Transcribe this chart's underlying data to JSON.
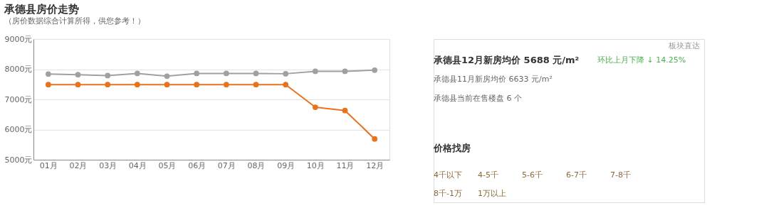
{
  "chart_data": [
    {
      "type": "line",
      "title": "承德县房价走势",
      "subtitle": "（房价数据综合计算所得，供您参考！）",
      "categories": [
        "01月",
        "02月",
        "03月",
        "04月",
        "05月",
        "06月",
        "07月",
        "08月",
        "09月",
        "10月",
        "11月",
        "12月"
      ],
      "series": [
        {
          "color": "#a0a0a0",
          "values": [
            7840,
            7820,
            7790,
            7860,
            7770,
            7860,
            7860,
            7860,
            7850,
            7930,
            7930,
            7970
          ]
        },
        {
          "color": "#e8731f",
          "values": [
            7490,
            7490,
            7490,
            7490,
            7490,
            7490,
            7490,
            7490,
            7490,
            6740,
            6630,
            5690
          ]
        }
      ],
      "ylim": [
        5000,
        9000
      ],
      "yticks": [
        {
          "value": 5000,
          "label": "5000元"
        },
        {
          "value": 6000,
          "label": "6000元"
        },
        {
          "value": 7000,
          "label": "7000元"
        },
        {
          "value": 8000,
          "label": "8000元"
        },
        {
          "value": 9000,
          "label": "9000元"
        }
      ],
      "grid": "y",
      "marker": "circle",
      "line_style": "solid"
    },
    {
      "type": "other",
      "annotations": [
        "板块直达",
        "承德县12月新房均价 5688 元/m²",
        "环比上月下降 ↓ 14.25%",
        "承德县11月新房均价 6633 元/m²",
        "承德县当前在售楼盘 6 个",
        "价格找房",
        "4千以下",
        "4-5千",
        "5-6千",
        "6-7千",
        "7-8千",
        "8千-1万",
        "1万以上"
      ]
    }
  ]
}
